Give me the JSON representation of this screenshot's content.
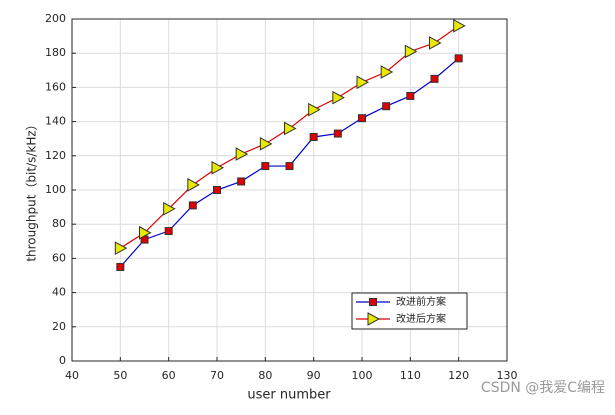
{
  "chart_data": {
    "type": "line",
    "xlabel": "user number",
    "ylabel": "throughput（bit/s/kHz）",
    "x": [
      50,
      55,
      60,
      65,
      70,
      75,
      80,
      85,
      90,
      95,
      100,
      105,
      110,
      115,
      120
    ],
    "series": [
      {
        "name": "改进前方案",
        "color": "#0000cc",
        "marker": "square",
        "marker_face": "#dd0000",
        "values": [
          55,
          71,
          76,
          91,
          100,
          105,
          114,
          114,
          131,
          133,
          142,
          149,
          155,
          165,
          177
        ]
      },
      {
        "name": "改进后方案",
        "color": "#dd0000",
        "marker": "triangle-right",
        "marker_face": "#e8e800",
        "values": [
          66,
          75,
          89,
          103,
          113,
          121,
          127,
          136,
          147,
          154,
          163,
          169,
          181,
          186,
          196
        ]
      }
    ],
    "xlim": [
      40,
      130
    ],
    "xticks": [
      40,
      50,
      60,
      70,
      80,
      90,
      100,
      110,
      120,
      130
    ],
    "ylim": [
      0,
      200
    ],
    "yticks": [
      0,
      20,
      40,
      60,
      80,
      100,
      120,
      140,
      160,
      180,
      200
    ],
    "grid": true,
    "legend": "lower right"
  },
  "watermark": "CSDN @我爱C编程"
}
